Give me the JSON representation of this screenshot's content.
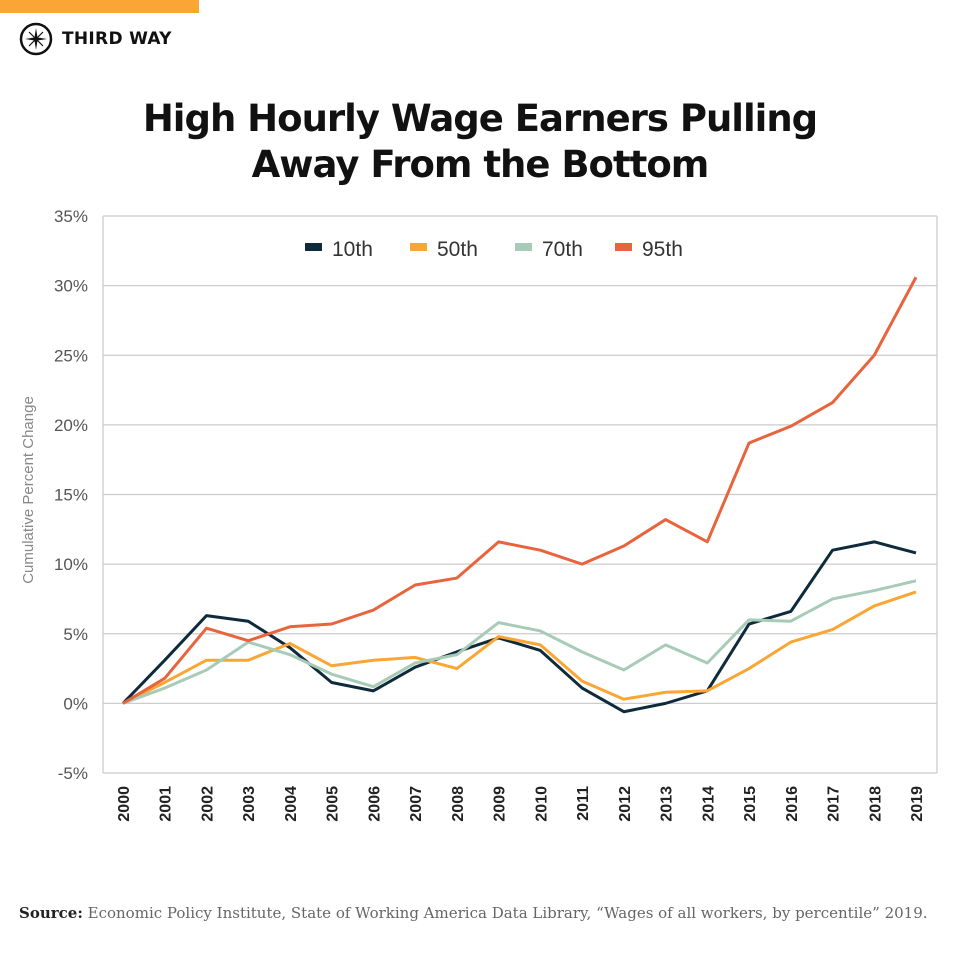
{
  "brand": {
    "name": "THIRD WAY",
    "accent": "#f9a634"
  },
  "title_line1": "High Hourly Wage Earners Pulling",
  "title_line2": "Away From the Bottom",
  "source": {
    "label": "Source:",
    "text": " Economic Policy Institute, State of Working America Data Library, “Wages of all workers, by percentile” 2019."
  },
  "chart_data": {
    "type": "line",
    "title": "High Hourly Wage Earners Pulling Away From the Bottom",
    "xlabel": "",
    "ylabel": "Cumulative Percent Change",
    "ylim": [
      -5,
      35
    ],
    "yticks": [
      -5,
      0,
      5,
      10,
      15,
      20,
      25,
      30,
      35
    ],
    "ytick_labels": [
      "-5%",
      "0%",
      "5%",
      "10%",
      "15%",
      "20%",
      "25%",
      "30%",
      "35%"
    ],
    "grid": "horizontal",
    "legend": "top",
    "x": [
      "2000",
      "2001",
      "2002",
      "2003",
      "2004",
      "2005",
      "2006",
      "2007",
      "2008",
      "2009",
      "2010",
      "2011",
      "2012",
      "2013",
      "2014",
      "2015",
      "2016",
      "2017",
      "2018",
      "2019"
    ],
    "series": [
      {
        "name": "10th",
        "color": "#0e2a3b",
        "values": [
          0,
          3.1,
          6.3,
          5.9,
          4.0,
          1.5,
          0.9,
          2.6,
          3.7,
          4.7,
          3.8,
          1.1,
          -0.6,
          0,
          0.9,
          5.7,
          6.6,
          11.0,
          11.6,
          10.8
        ]
      },
      {
        "name": "50th",
        "color": "#f9a634",
        "values": [
          0,
          1.5,
          3.1,
          3.1,
          4.3,
          2.7,
          3.1,
          3.3,
          2.5,
          4.8,
          4.2,
          1.6,
          0.3,
          0.8,
          0.9,
          2.5,
          4.4,
          5.3,
          7.0,
          8.0
        ]
      },
      {
        "name": "70th",
        "color": "#a8cbb8",
        "values": [
          0,
          1.1,
          2.4,
          4.4,
          3.5,
          2.1,
          1.2,
          2.9,
          3.5,
          5.8,
          5.2,
          3.7,
          2.4,
          4.2,
          2.9,
          6.0,
          5.9,
          7.5,
          8.1,
          8.8
        ]
      },
      {
        "name": "95th",
        "color": "#e8643c",
        "values": [
          0,
          1.8,
          5.4,
          4.5,
          5.5,
          5.7,
          6.7,
          8.5,
          9.0,
          11.6,
          11.0,
          10.0,
          11.3,
          13.2,
          11.6,
          18.7,
          19.9,
          21.6,
          25.0,
          30.6
        ]
      }
    ]
  }
}
